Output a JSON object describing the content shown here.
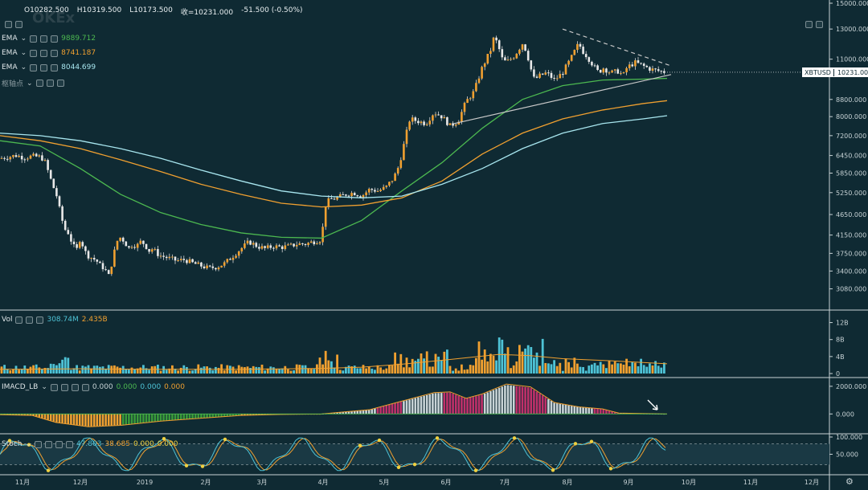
{
  "header": {
    "open": "O10282.500",
    "high": "H10319.500",
    "low": "L10173.500",
    "close": "收=10231.000",
    "change": "-51.500 (-0.50%)"
  },
  "overlays": [
    {
      "name": "EMA",
      "value": "9889.712",
      "color": "#4cb850"
    },
    {
      "name": "EMA",
      "value": "8741.187",
      "color": "#f0a030"
    },
    {
      "name": "EMA",
      "value": "8044.699",
      "color": "#a8e6ef"
    },
    {
      "name": "枢轴点",
      "value": "",
      "color": "#8a9aa0"
    }
  ],
  "price_tag": {
    "symbol": "XBTUSD",
    "price": "10231.000"
  },
  "panes": {
    "volume": {
      "label": "Vol",
      "v1": "308.74M",
      "v2": "2.435B",
      "v1_color": "#4ec3d6",
      "v2_color": "#f0a030"
    },
    "macd": {
      "label": "IMACD_LB",
      "values": [
        "0.000",
        "0.000",
        "0.000",
        "0.000"
      ],
      "colors": [
        "#c8d3d6",
        "#4cb850",
        "#4ec3d6",
        "#f0a030"
      ]
    },
    "stoch": {
      "label": "Stoch",
      "k": "47.803",
      "d": "38.685",
      "e1": "0.000",
      "e2": "0.000",
      "k_color": "#4ec3d6",
      "d_color": "#f0a030",
      "e_color": "#f0d040"
    }
  },
  "chart_data": {
    "type": "candlestick",
    "symbol": "XBTUSD",
    "price_axis": {
      "scale": "log",
      "ticks": [
        "15000.000",
        "13000.000",
        "11000.000",
        "10231.000",
        "8800.000",
        "8000.000",
        "7200.000",
        "6450.000",
        "5850.000",
        "5250.000",
        "4650.000",
        "4150.000",
        "3750.000",
        "3400.000",
        "3080.000"
      ],
      "ylim": [
        2800,
        15000
      ]
    },
    "time_axis": {
      "ticks": [
        "11月",
        "12月",
        "2019",
        "2月",
        "3月",
        "4月",
        "5月",
        "6月",
        "7月",
        "8月",
        "9月",
        "10月",
        "11月",
        "12月"
      ]
    },
    "price_series": {
      "name": "XBTUSD",
      "points": [
        [
          0,
          6350
        ],
        [
          10,
          6400
        ],
        [
          20,
          6450
        ],
        [
          30,
          6380
        ],
        [
          40,
          6420
        ],
        [
          50,
          6400
        ],
        [
          55,
          6300
        ],
        [
          60,
          5900
        ],
        [
          65,
          5500
        ],
        [
          70,
          5200
        ],
        [
          75,
          4700
        ],
        [
          80,
          4300
        ],
        [
          85,
          4200
        ],
        [
          90,
          3950
        ],
        [
          95,
          3800
        ],
        [
          100,
          4100
        ],
        [
          105,
          3800
        ],
        [
          110,
          3700
        ],
        [
          115,
          3650
        ],
        [
          120,
          3600
        ],
        [
          125,
          3500
        ],
        [
          130,
          3450
        ],
        [
          135,
          3300
        ],
        [
          140,
          3600
        ],
        [
          145,
          4000
        ],
        [
          150,
          4100
        ],
        [
          155,
          4000
        ],
        [
          160,
          3850
        ],
        [
          165,
          3950
        ],
        [
          170,
          3900
        ],
        [
          175,
          4000
        ],
        [
          180,
          3950
        ],
        [
          185,
          3800
        ],
        [
          190,
          3850
        ],
        [
          195,
          3750
        ],
        [
          200,
          3700
        ],
        [
          210,
          3650
        ],
        [
          220,
          3600
        ],
        [
          230,
          3620
        ],
        [
          240,
          3550
        ],
        [
          250,
          3500
        ],
        [
          260,
          3450
        ],
        [
          270,
          3480
        ],
        [
          280,
          3550
        ],
        [
          290,
          3700
        ],
        [
          300,
          3850
        ],
        [
          310,
          4000
        ],
        [
          320,
          3900
        ],
        [
          330,
          3850
        ],
        [
          340,
          3900
        ],
        [
          350,
          3880
        ],
        [
          360,
          3900
        ],
        [
          370,
          3950
        ],
        [
          380,
          3950
        ],
        [
          390,
          4000
        ],
        [
          400,
          4050
        ],
        [
          405,
          4900
        ],
        [
          410,
          5050
        ],
        [
          420,
          5100
        ],
        [
          430,
          5200
        ],
        [
          440,
          5250
        ],
        [
          450,
          5150
        ],
        [
          460,
          5350
        ],
        [
          470,
          5300
        ],
        [
          480,
          5400
        ],
        [
          490,
          5700
        ],
        [
          495,
          6000
        ],
        [
          500,
          6500
        ],
        [
          505,
          7200
        ],
        [
          510,
          7900
        ],
        [
          520,
          7800
        ],
        [
          530,
          7700
        ],
        [
          540,
          8200
        ],
        [
          550,
          8000
        ],
        [
          555,
          7800
        ],
        [
          560,
          7600
        ],
        [
          570,
          7800
        ],
        [
          580,
          8700
        ],
        [
          590,
          9200
        ],
        [
          600,
          10500
        ],
        [
          605,
          11000
        ],
        [
          610,
          11500
        ],
        [
          615,
          12500
        ],
        [
          620,
          11800
        ],
        [
          625,
          11000
        ],
        [
          630,
          10800
        ],
        [
          640,
          11200
        ],
        [
          650,
          12000
        ],
        [
          655,
          11500
        ],
        [
          660,
          10500
        ],
        [
          665,
          9800
        ],
        [
          670,
          10000
        ],
        [
          680,
          10200
        ],
        [
          690,
          9800
        ],
        [
          700,
          10200
        ],
        [
          710,
          11000
        ],
        [
          715,
          11500
        ],
        [
          720,
          12000
        ],
        [
          725,
          11500
        ],
        [
          730,
          11200
        ],
        [
          740,
          10500
        ],
        [
          745,
          10200
        ],
        [
          750,
          10500
        ],
        [
          760,
          10200
        ],
        [
          770,
          10300
        ],
        [
          775,
          10000
        ],
        [
          780,
          10500
        ],
        [
          790,
          10800
        ],
        [
          800,
          10600
        ],
        [
          810,
          10400
        ],
        [
          820,
          10300
        ],
        [
          830,
          10231
        ]
      ]
    },
    "ema_series": [
      {
        "color": "#4cb850",
        "points": [
          [
            0,
            7000
          ],
          [
            50,
            6800
          ],
          [
            100,
            6000
          ],
          [
            150,
            5200
          ],
          [
            200,
            4700
          ],
          [
            250,
            4400
          ],
          [
            300,
            4200
          ],
          [
            350,
            4100
          ],
          [
            400,
            4080
          ],
          [
            450,
            4500
          ],
          [
            500,
            5300
          ],
          [
            550,
            6200
          ],
          [
            600,
            7500
          ],
          [
            650,
            8800
          ],
          [
            700,
            9500
          ],
          [
            750,
            9800
          ],
          [
            800,
            9850
          ],
          [
            830,
            9890
          ]
        ]
      },
      {
        "color": "#f0a030",
        "points": [
          [
            0,
            7200
          ],
          [
            50,
            7000
          ],
          [
            100,
            6700
          ],
          [
            150,
            6300
          ],
          [
            200,
            5900
          ],
          [
            250,
            5500
          ],
          [
            300,
            5200
          ],
          [
            350,
            4950
          ],
          [
            400,
            4850
          ],
          [
            450,
            4900
          ],
          [
            500,
            5100
          ],
          [
            550,
            5600
          ],
          [
            600,
            6500
          ],
          [
            650,
            7300
          ],
          [
            700,
            7900
          ],
          [
            750,
            8300
          ],
          [
            800,
            8600
          ],
          [
            830,
            8741
          ]
        ]
      },
      {
        "color": "#a8e6ef",
        "points": [
          [
            0,
            7300
          ],
          [
            50,
            7200
          ],
          [
            100,
            7000
          ],
          [
            150,
            6700
          ],
          [
            200,
            6350
          ],
          [
            250,
            5950
          ],
          [
            300,
            5600
          ],
          [
            350,
            5300
          ],
          [
            400,
            5150
          ],
          [
            450,
            5100
          ],
          [
            500,
            5150
          ],
          [
            550,
            5500
          ],
          [
            600,
            6000
          ],
          [
            650,
            6700
          ],
          [
            700,
            7300
          ],
          [
            750,
            7700
          ],
          [
            800,
            7900
          ],
          [
            830,
            8044
          ]
        ]
      }
    ],
    "trendlines": [
      {
        "style": "solid",
        "color": "#c8c8c8",
        "from": [
          565,
          7700
        ],
        "to": [
          835,
          10100
        ]
      },
      {
        "style": "dashed",
        "color": "#c8c8c8",
        "from": [
          700,
          13000
        ],
        "to": [
          835,
          10600
        ]
      }
    ],
    "volume": {
      "label": "Vol",
      "ticks": [
        "12B",
        "8B",
        "4B",
        "0"
      ],
      "ylim": [
        0,
        14
      ]
    },
    "macd": {
      "label": "IMACD_LB",
      "ticks": [
        "2000.000",
        "0.000"
      ],
      "ylim": [
        -1200,
        2400
      ]
    },
    "stoch": {
      "label": "Stoch",
      "ticks": [
        "100.000",
        "50.000"
      ],
      "ylim": [
        0,
        100
      ]
    }
  }
}
